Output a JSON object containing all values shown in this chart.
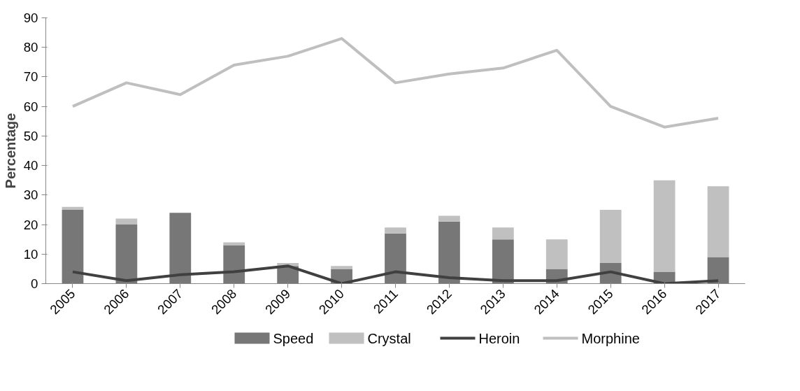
{
  "chart_data": {
    "type": "bar",
    "ylabel": "Percentage",
    "stacked": true,
    "grid": false,
    "legend": "bottom",
    "categories": [
      "2005",
      "2006",
      "2007",
      "2008",
      "2009",
      "2010",
      "2011",
      "2012",
      "2013",
      "2014",
      "2015",
      "2016",
      "2017"
    ],
    "ylim": [
      0,
      90
    ],
    "yticks": [
      0,
      10,
      20,
      30,
      40,
      50,
      60,
      70,
      80,
      90
    ],
    "series": [
      {
        "name": "Speed",
        "type": "bar",
        "color": "#777777",
        "values": [
          25,
          20,
          24,
          13,
          6,
          5,
          17,
          21,
          15,
          5,
          7,
          4,
          9
        ]
      },
      {
        "name": "Crystal",
        "type": "bar",
        "color": "#c0c0c0",
        "values": [
          1,
          2,
          0,
          1,
          1,
          1,
          2,
          2,
          4,
          10,
          18,
          31,
          24
        ]
      },
      {
        "name": "Heroin",
        "type": "line",
        "color": "#404040",
        "values": [
          4,
          1,
          3,
          4,
          6,
          0,
          4,
          2,
          1,
          1,
          4,
          0,
          1
        ]
      },
      {
        "name": "Morphine",
        "type": "line",
        "color": "#bfbfbf",
        "values": [
          60,
          68,
          64,
          74,
          77,
          83,
          68,
          71,
          73,
          79,
          60,
          53,
          56
        ]
      }
    ]
  }
}
